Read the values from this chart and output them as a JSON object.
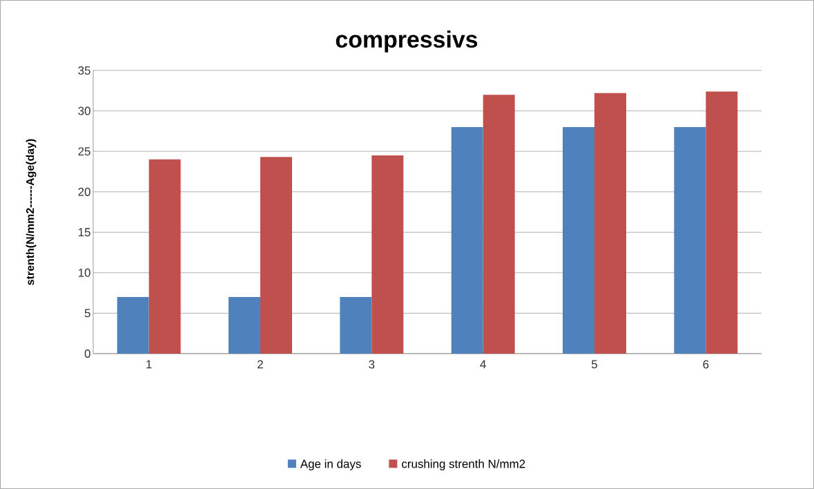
{
  "chart_data": {
    "type": "bar",
    "title": "compressivs",
    "ylabel": "strenth(N/mm2------Age(day)",
    "categories": [
      "1",
      "2",
      "3",
      "4",
      "5",
      "6"
    ],
    "series": [
      {
        "name": "Age in days",
        "color": "#4f81bd",
        "values": [
          7,
          7,
          7,
          28,
          28,
          28
        ]
      },
      {
        "name": "crushing strenth  N/mm2",
        "color": "#c0504d",
        "values": [
          24.0,
          24.3,
          24.5,
          32.0,
          32.2,
          32.4
        ]
      }
    ],
    "ylim": [
      0,
      35
    ],
    "yticks": [
      0,
      5,
      10,
      15,
      20,
      25,
      30,
      35
    ],
    "grid": "y",
    "legend": "bottom"
  }
}
